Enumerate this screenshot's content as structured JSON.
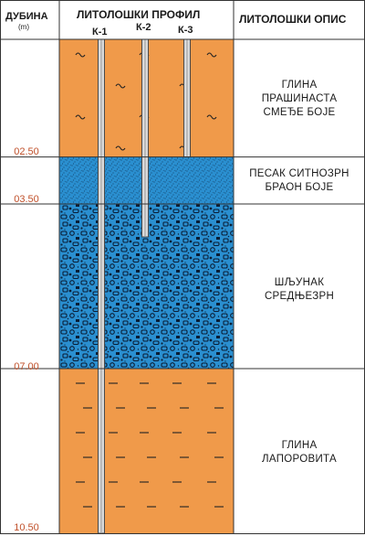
{
  "header": {
    "depth_title": "ДУБИНА",
    "depth_unit": "(m)",
    "profile_title": "ЛИТОЛОШКИ ПРОФИЛ",
    "description_title": "ЛИТОЛОШКИ ОПИС"
  },
  "boreholes": [
    {
      "label": "К-1",
      "bottom_m": 10.5
    },
    {
      "label": "К-2",
      "bottom_m": 4.2
    },
    {
      "label": "К-3",
      "bottom_m": 2.5
    }
  ],
  "depth_scale": {
    "min_m": 0,
    "max_m": 10.5
  },
  "depth_labels": [
    "02.50",
    "03.50",
    "07.00",
    "10.50"
  ],
  "layers": [
    {
      "from_m": 0,
      "to_m": 2.5,
      "lithology": "clay",
      "symbol": "tilde",
      "color": "#f09a4a",
      "description": [
        "ГЛИНА",
        "ПРАШИНАСТА",
        "СМЕЂЕ БОЈЕ"
      ]
    },
    {
      "from_m": 2.5,
      "to_m": 3.5,
      "lithology": "fine sand",
      "symbol": "dots",
      "color": "#2a8fd0",
      "description": [
        "ПЕСАК СИТНОЗРН",
        "БРАОН БОЈЕ"
      ]
    },
    {
      "from_m": 3.5,
      "to_m": 7.0,
      "lithology": "gravel",
      "symbol": "pebbles",
      "color": "#2a8fd0",
      "description": [
        "ШЉУНАК",
        "СРЕДЊЕЗРН"
      ]
    },
    {
      "from_m": 7.0,
      "to_m": 10.5,
      "lithology": "marl clay",
      "symbol": "dash",
      "color": "#f09a4a",
      "description": [
        "ГЛИНА",
        "ЛАПОРОВИТА"
      ]
    }
  ],
  "colors": {
    "clay": "#f09a4a",
    "water_layer": "#2a8fd0",
    "depth_label": "#c0502a",
    "grid": "#333333"
  }
}
